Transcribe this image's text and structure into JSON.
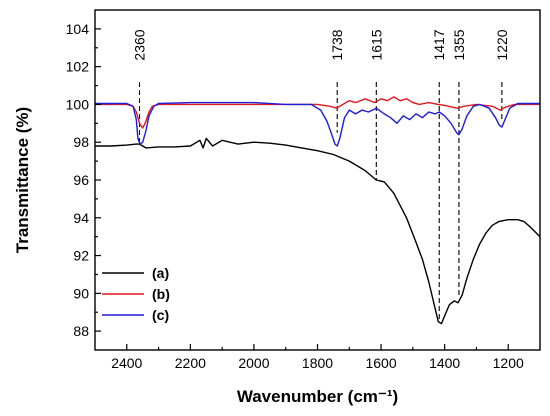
{
  "chart_data": {
    "type": "line",
    "title": "",
    "xlabel": "Wavenumber (cm⁻¹)",
    "ylabel": "Transmittance (%)",
    "xlim": [
      2500,
      1100
    ],
    "ylim": [
      87,
      105
    ],
    "x_reversed": true,
    "grid": false,
    "legend_position": "bottom-left",
    "x_ticks": [
      "2400",
      "2200",
      "2000",
      "1800",
      "1600",
      "1400",
      "1200"
    ],
    "y_ticks": [
      "88",
      "90",
      "92",
      "94",
      "96",
      "98",
      "100",
      "102",
      "104"
    ],
    "annotations": [
      {
        "label": "2360",
        "x": 2360,
        "y_end": 98.0
      },
      {
        "label": "1738",
        "x": 1738,
        "y_end": 98.5
      },
      {
        "label": "1615",
        "x": 1615,
        "y_end": 96.0
      },
      {
        "label": "1417",
        "x": 1417,
        "y_end": 88.6
      },
      {
        "label": "1355",
        "x": 1355,
        "y_end": 89.9
      },
      {
        "label": "1220",
        "x": 1220,
        "y_end": 99.1
      }
    ],
    "series": [
      {
        "name": "(a)",
        "color": "#000000",
        "points": [
          [
            2500,
            97.8
          ],
          [
            2450,
            97.8
          ],
          [
            2400,
            97.85
          ],
          [
            2370,
            97.9
          ],
          [
            2360,
            97.9
          ],
          [
            2340,
            97.7
          ],
          [
            2300,
            97.75
          ],
          [
            2250,
            97.75
          ],
          [
            2200,
            97.8
          ],
          [
            2170,
            98.1
          ],
          [
            2160,
            97.7
          ],
          [
            2150,
            98.2
          ],
          [
            2130,
            97.8
          ],
          [
            2100,
            98.1
          ],
          [
            2050,
            97.9
          ],
          [
            2000,
            98.0
          ],
          [
            1950,
            97.95
          ],
          [
            1900,
            97.85
          ],
          [
            1850,
            97.7
          ],
          [
            1800,
            97.55
          ],
          [
            1750,
            97.35
          ],
          [
            1700,
            97.0
          ],
          [
            1650,
            96.5
          ],
          [
            1615,
            96.0
          ],
          [
            1590,
            95.9
          ],
          [
            1560,
            95.3
          ],
          [
            1520,
            94.0
          ],
          [
            1490,
            92.7
          ],
          [
            1470,
            91.8
          ],
          [
            1450,
            90.6
          ],
          [
            1430,
            89.2
          ],
          [
            1420,
            88.5
          ],
          [
            1410,
            88.4
          ],
          [
            1400,
            88.8
          ],
          [
            1385,
            89.4
          ],
          [
            1370,
            89.6
          ],
          [
            1358,
            89.5
          ],
          [
            1345,
            89.9
          ],
          [
            1330,
            90.8
          ],
          [
            1310,
            91.8
          ],
          [
            1290,
            92.6
          ],
          [
            1270,
            93.2
          ],
          [
            1250,
            93.6
          ],
          [
            1230,
            93.8
          ],
          [
            1200,
            93.9
          ],
          [
            1170,
            93.9
          ],
          [
            1150,
            93.8
          ],
          [
            1130,
            93.5
          ],
          [
            1100,
            93.0
          ]
        ]
      },
      {
        "name": "(b)",
        "color": "#e0181e",
        "points": [
          [
            2500,
            100.0
          ],
          [
            2400,
            100.0
          ],
          [
            2380,
            99.9
          ],
          [
            2370,
            99.6
          ],
          [
            2360,
            99.0
          ],
          [
            2350,
            98.75
          ],
          [
            2340,
            99.1
          ],
          [
            2330,
            99.6
          ],
          [
            2320,
            99.9
          ],
          [
            2300,
            100.0
          ],
          [
            2200,
            100.0
          ],
          [
            2000,
            100.0
          ],
          [
            1800,
            100.0
          ],
          [
            1760,
            99.9
          ],
          [
            1740,
            99.8
          ],
          [
            1720,
            100.0
          ],
          [
            1700,
            100.2
          ],
          [
            1680,
            100.1
          ],
          [
            1650,
            100.3
          ],
          [
            1620,
            100.1
          ],
          [
            1600,
            100.3
          ],
          [
            1580,
            100.2
          ],
          [
            1560,
            100.4
          ],
          [
            1540,
            100.2
          ],
          [
            1520,
            100.3
          ],
          [
            1500,
            100.1
          ],
          [
            1480,
            100.0
          ],
          [
            1450,
            100.1
          ],
          [
            1420,
            100.0
          ],
          [
            1400,
            99.95
          ],
          [
            1360,
            99.8
          ],
          [
            1340,
            99.9
          ],
          [
            1300,
            100.0
          ],
          [
            1250,
            99.9
          ],
          [
            1225,
            99.7
          ],
          [
            1210,
            99.85
          ],
          [
            1180,
            100.0
          ],
          [
            1100,
            100.0
          ]
        ]
      },
      {
        "name": "(c)",
        "color": "#1d1dd6",
        "points": [
          [
            2500,
            100.05
          ],
          [
            2400,
            100.05
          ],
          [
            2380,
            99.9
          ],
          [
            2370,
            99.2
          ],
          [
            2365,
            98.2
          ],
          [
            2358,
            97.9
          ],
          [
            2350,
            98.0
          ],
          [
            2340,
            98.6
          ],
          [
            2330,
            99.4
          ],
          [
            2315,
            99.9
          ],
          [
            2300,
            100.05
          ],
          [
            2200,
            100.1
          ],
          [
            2000,
            100.1
          ],
          [
            1900,
            100.0
          ],
          [
            1820,
            100.0
          ],
          [
            1790,
            99.7
          ],
          [
            1770,
            99.1
          ],
          [
            1755,
            98.4
          ],
          [
            1745,
            97.9
          ],
          [
            1738,
            97.8
          ],
          [
            1730,
            98.2
          ],
          [
            1715,
            99.3
          ],
          [
            1700,
            99.7
          ],
          [
            1680,
            99.5
          ],
          [
            1660,
            99.7
          ],
          [
            1640,
            99.6
          ],
          [
            1615,
            99.8
          ],
          [
            1590,
            99.5
          ],
          [
            1570,
            99.3
          ],
          [
            1550,
            99.0
          ],
          [
            1530,
            99.4
          ],
          [
            1510,
            99.2
          ],
          [
            1490,
            99.5
          ],
          [
            1470,
            99.3
          ],
          [
            1450,
            99.6
          ],
          [
            1430,
            99.5
          ],
          [
            1417,
            99.6
          ],
          [
            1400,
            99.4
          ],
          [
            1380,
            99.0
          ],
          [
            1362,
            98.5
          ],
          [
            1355,
            98.4
          ],
          [
            1345,
            98.7
          ],
          [
            1330,
            99.4
          ],
          [
            1310,
            99.9
          ],
          [
            1290,
            100.0
          ],
          [
            1260,
            99.8
          ],
          [
            1240,
            99.3
          ],
          [
            1228,
            98.9
          ],
          [
            1220,
            98.8
          ],
          [
            1210,
            99.2
          ],
          [
            1195,
            99.8
          ],
          [
            1170,
            100.05
          ],
          [
            1100,
            100.05
          ]
        ]
      }
    ]
  }
}
